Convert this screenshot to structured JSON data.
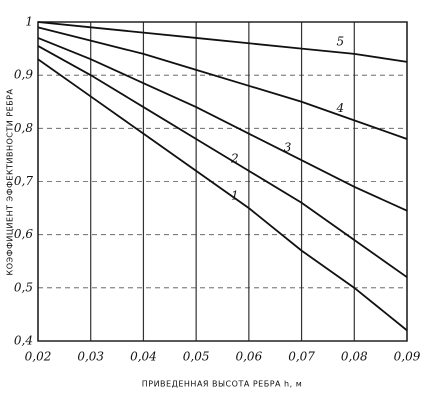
{
  "chart_data": {
    "type": "line",
    "xlabel": "ПРИВЕДЕННАЯ ВЫСОТА РЕБРА h, м",
    "ylabel": "КОЭФФИЦИЕНТ ЭФФЕКТИВНОСТИ РЕБРА",
    "x": [
      0.02,
      0.03,
      0.04,
      0.05,
      0.06,
      0.07,
      0.08,
      0.09
    ],
    "series": [
      {
        "name": "1",
        "color": "#111111",
        "values": [
          0.93,
          0.86,
          0.79,
          0.72,
          0.65,
          0.57,
          0.5,
          0.42
        ]
      },
      {
        "name": "2",
        "color": "#111111",
        "values": [
          0.955,
          0.9,
          0.84,
          0.78,
          0.72,
          0.66,
          0.59,
          0.52
        ]
      },
      {
        "name": "3",
        "color": "#111111",
        "values": [
          0.97,
          0.93,
          0.885,
          0.84,
          0.79,
          0.74,
          0.69,
          0.645
        ]
      },
      {
        "name": "4",
        "color": "#111111",
        "values": [
          0.99,
          0.965,
          0.94,
          0.91,
          0.88,
          0.85,
          0.815,
          0.78
        ]
      },
      {
        "name": "5",
        "color": "#111111",
        "values": [
          1.0,
          0.99,
          0.98,
          0.97,
          0.96,
          0.95,
          0.94,
          0.925
        ]
      }
    ],
    "xlim": [
      0.02,
      0.09
    ],
    "xticks": [
      {
        "value": 0.02,
        "label": "0,02"
      },
      {
        "value": 0.03,
        "label": "0,03"
      },
      {
        "value": 0.04,
        "label": "0,04"
      },
      {
        "value": 0.05,
        "label": "0,05"
      },
      {
        "value": 0.06,
        "label": "0,06"
      },
      {
        "value": 0.07,
        "label": "0,07"
      },
      {
        "value": 0.08,
        "label": "0,08"
      },
      {
        "value": 0.09,
        "label": "0,09"
      }
    ],
    "ylim": [
      0.4,
      1.0
    ],
    "yticks": [
      {
        "value": 0.4,
        "label": "0,4"
      },
      {
        "value": 0.5,
        "label": "0,5"
      },
      {
        "value": 0.6,
        "label": "0,6"
      },
      {
        "value": 0.7,
        "label": "0,7"
      },
      {
        "value": 0.8,
        "label": "0,8"
      },
      {
        "value": 0.9,
        "label": "0,9"
      },
      1
    ],
    "grid": true
  }
}
